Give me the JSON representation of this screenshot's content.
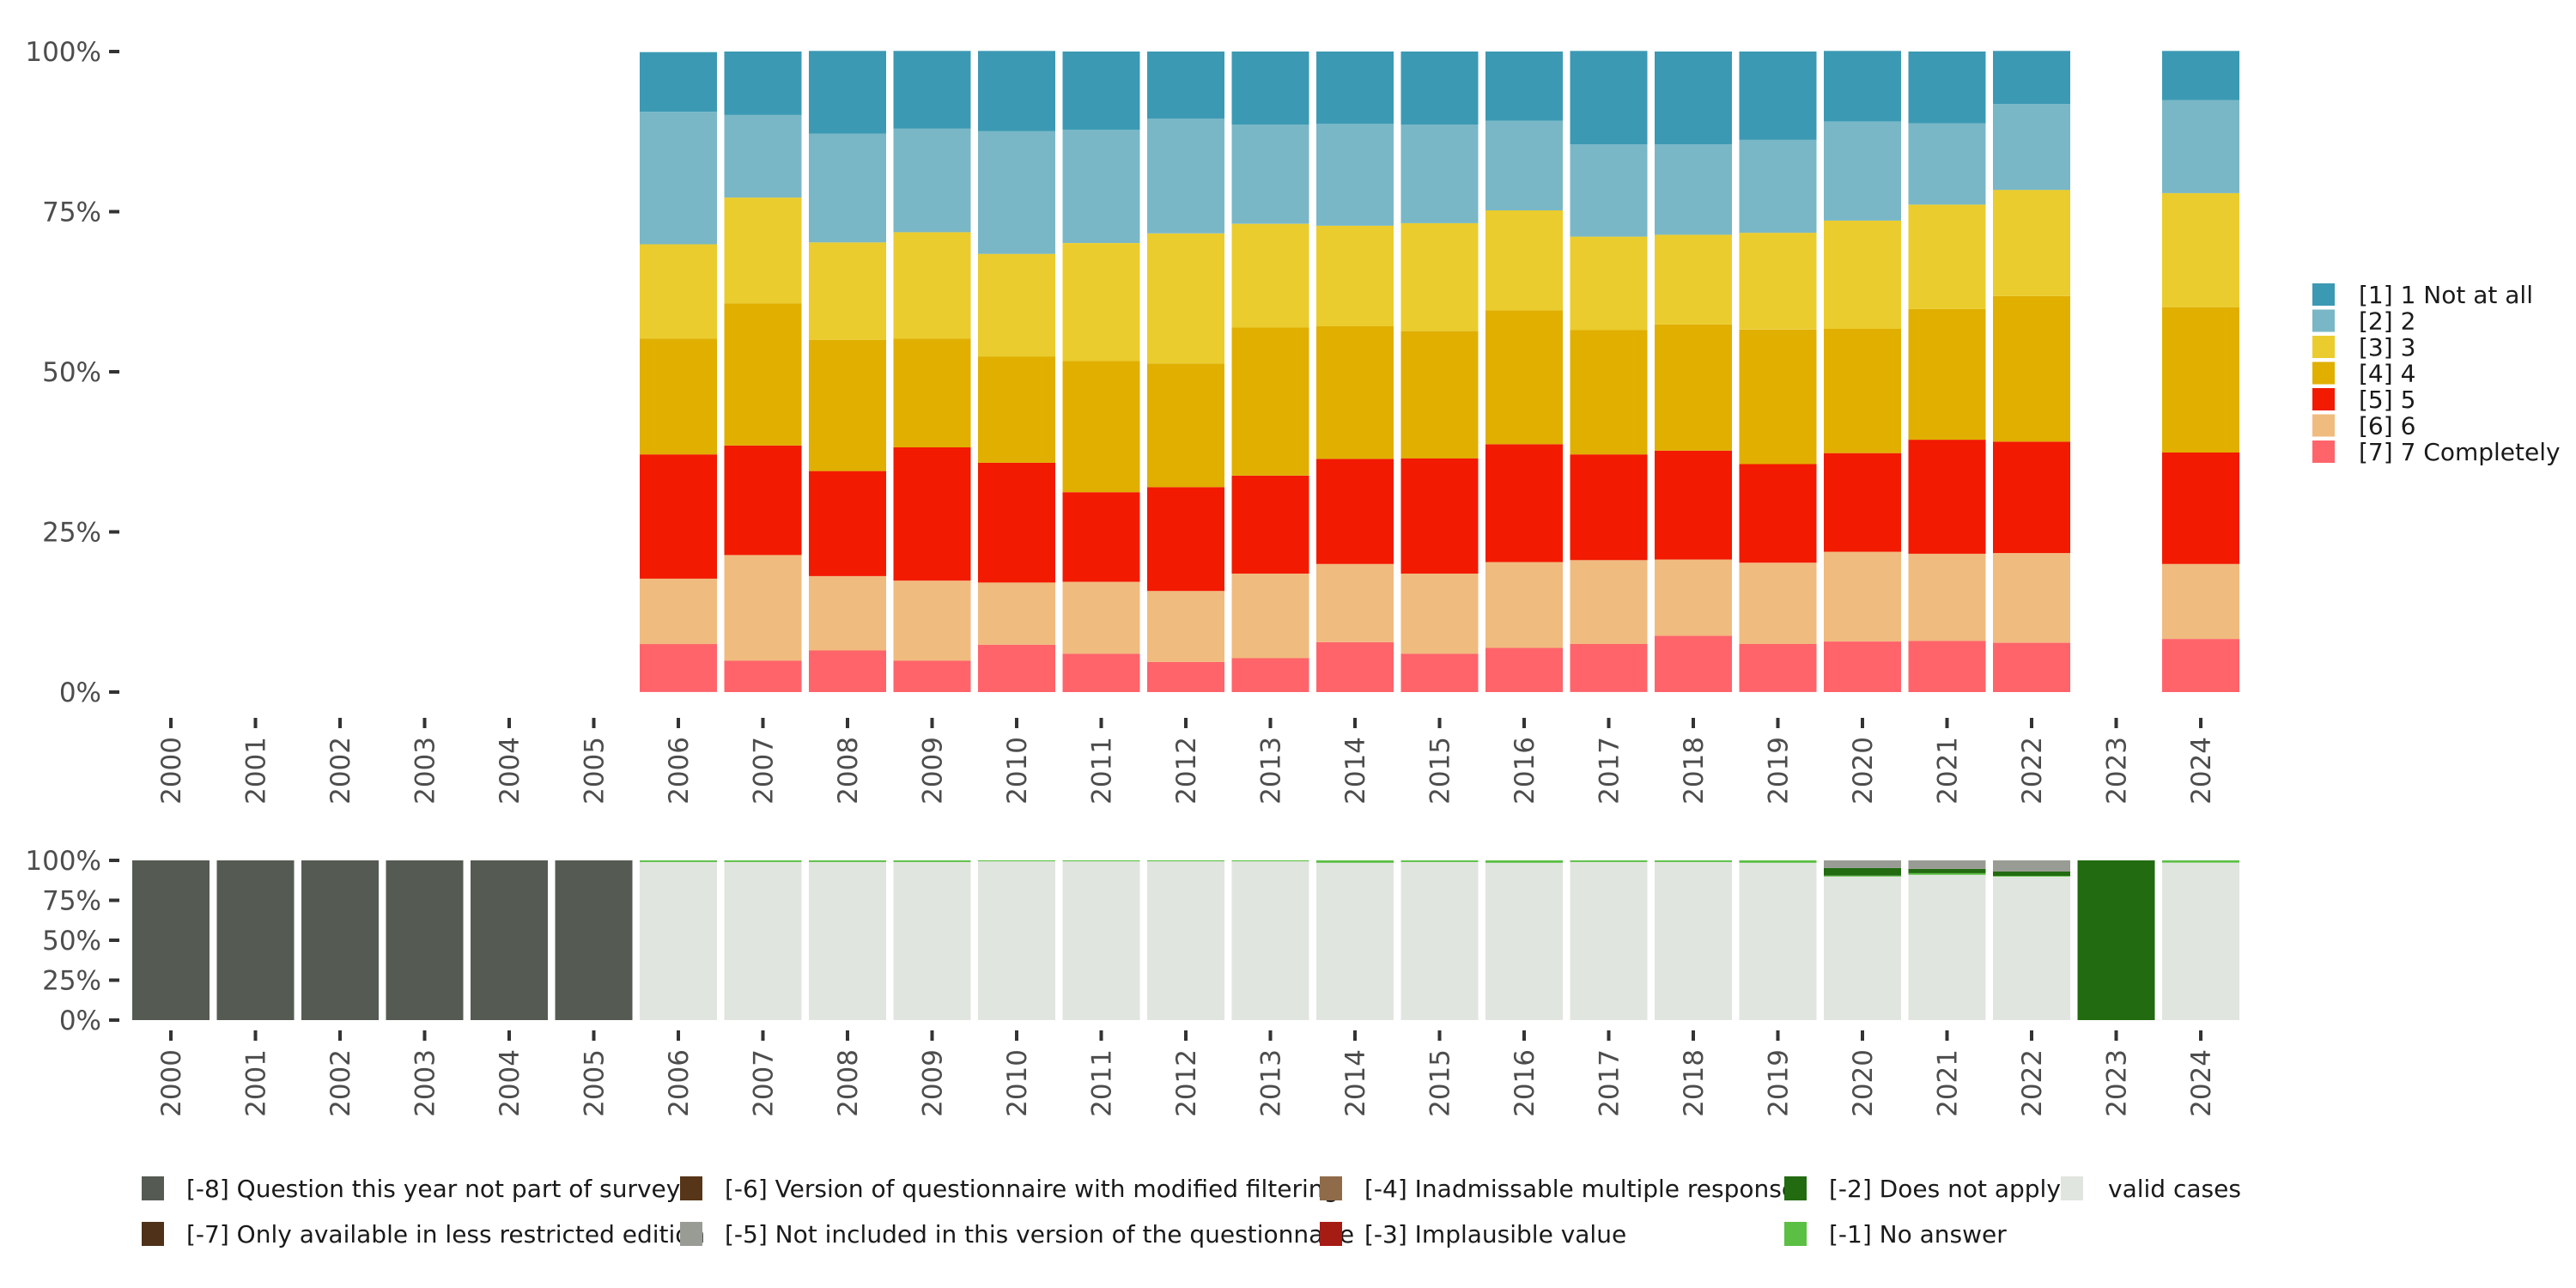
{
  "chart_data": [
    {
      "id": "main",
      "type": "bar",
      "stacked": true,
      "normalized": true,
      "title": "",
      "xlabel": "",
      "ylabel": "",
      "ylim": [
        0,
        100
      ],
      "y_ticks": [
        "0%",
        "25%",
        "50%",
        "75%",
        "100%"
      ],
      "categories": [
        "2000",
        "2001",
        "2002",
        "2003",
        "2004",
        "2005",
        "2006",
        "2007",
        "2008",
        "2009",
        "2010",
        "2011",
        "2012",
        "2013",
        "2014",
        "2015",
        "2016",
        "2017",
        "2018",
        "2019",
        "2020",
        "2021",
        "2022",
        "2023",
        "2024"
      ],
      "legend_position": "right",
      "series": [
        {
          "name": "[1] 1 Not at all",
          "color": "#3c99b3",
          "values": [
            null,
            null,
            null,
            null,
            null,
            null,
            9.3,
            9.9,
            12.9,
            12.1,
            12.5,
            12.2,
            10.5,
            11.4,
            11.3,
            11.4,
            10.8,
            14.6,
            14.5,
            13.8,
            11.0,
            11.2,
            8.3,
            null,
            7.7
          ]
        },
        {
          "name": "[2] 2",
          "color": "#79b7c6",
          "values": [
            null,
            null,
            null,
            null,
            null,
            null,
            20.7,
            12.9,
            17.0,
            16.2,
            19.2,
            17.7,
            17.9,
            15.5,
            15.9,
            15.4,
            14.0,
            14.4,
            14.1,
            14.5,
            15.5,
            12.7,
            13.4,
            null,
            14.5
          ]
        },
        {
          "name": "[3] 3",
          "color": "#eacc2e",
          "values": [
            null,
            null,
            null,
            null,
            null,
            null,
            14.7,
            16.5,
            15.2,
            16.6,
            16.0,
            18.4,
            20.3,
            16.2,
            15.7,
            16.8,
            15.6,
            14.6,
            14.0,
            15.1,
            16.9,
            16.3,
            16.6,
            null,
            17.8
          ]
        },
        {
          "name": "[4] 4",
          "color": "#e0af00",
          "values": [
            null,
            null,
            null,
            null,
            null,
            null,
            18.1,
            22.2,
            20.5,
            17.0,
            16.6,
            20.5,
            19.3,
            23.1,
            20.7,
            19.9,
            20.9,
            19.4,
            19.7,
            21.0,
            19.4,
            20.4,
            22.7,
            null,
            22.7
          ]
        },
        {
          "name": "[5] 5",
          "color": "#f21a00",
          "values": [
            null,
            null,
            null,
            null,
            null,
            null,
            19.4,
            17.1,
            16.4,
            20.8,
            18.7,
            14.0,
            16.2,
            15.3,
            16.4,
            18.0,
            18.4,
            16.5,
            17.0,
            15.4,
            15.4,
            17.8,
            17.4,
            null,
            17.4
          ]
        },
        {
          "name": "[6] 6",
          "color": "#f0bb7f",
          "values": [
            null,
            null,
            null,
            null,
            null,
            null,
            10.2,
            16.5,
            11.6,
            12.5,
            9.7,
            11.2,
            11.1,
            13.2,
            12.2,
            12.5,
            13.4,
            13.1,
            11.9,
            12.7,
            14.0,
            13.6,
            14.0,
            null,
            11.7
          ]
        },
        {
          "name": "[7] 7 Completely",
          "color": "#ff646a",
          "values": [
            null,
            null,
            null,
            null,
            null,
            null,
            7.5,
            4.9,
            6.5,
            4.9,
            7.4,
            6.0,
            4.7,
            5.3,
            7.8,
            6.0,
            6.9,
            7.5,
            8.8,
            7.5,
            7.9,
            8.0,
            7.7,
            null,
            8.3
          ]
        }
      ]
    },
    {
      "id": "missing",
      "type": "bar",
      "stacked": true,
      "normalized": true,
      "title": "",
      "xlabel": "",
      "ylabel": "",
      "ylim": [
        0,
        100
      ],
      "y_ticks": [
        "0%",
        "25%",
        "50%",
        "75%",
        "100%"
      ],
      "categories": [
        "2000",
        "2001",
        "2002",
        "2003",
        "2004",
        "2005",
        "2006",
        "2007",
        "2008",
        "2009",
        "2010",
        "2011",
        "2012",
        "2013",
        "2014",
        "2015",
        "2016",
        "2017",
        "2018",
        "2019",
        "2020",
        "2021",
        "2022",
        "2023",
        "2024"
      ],
      "legend_position": "bottom",
      "series": [
        {
          "name": "[-8] Question this year not part of survey",
          "color": "#555b53",
          "values": [
            100,
            100,
            100,
            100,
            100,
            100,
            0,
            0,
            0,
            0,
            0,
            0,
            0,
            0,
            0,
            0,
            0,
            0,
            0,
            0,
            0,
            0,
            0,
            0,
            0
          ]
        },
        {
          "name": "[-7] Only available in less restricted edition",
          "color": "#4f3119",
          "values": [
            0,
            0,
            0,
            0,
            0,
            0,
            0,
            0,
            0,
            0,
            0,
            0,
            0,
            0,
            0,
            0,
            0,
            0,
            0,
            0,
            0,
            0,
            0,
            0,
            0
          ]
        },
        {
          "name": "[-6] Version of questionnaire with modified filtering",
          "color": "#573518",
          "values": [
            0,
            0,
            0,
            0,
            0,
            0,
            0,
            0,
            0,
            0,
            0,
            0,
            0,
            0,
            0,
            0,
            0,
            0,
            0,
            0,
            0,
            0,
            0,
            0,
            0
          ]
        },
        {
          "name": "[-5] Not included in this version of the questionnaire",
          "color": "#999c94",
          "values": [
            0,
            0,
            0,
            0,
            0,
            0,
            0,
            0,
            0,
            0,
            0,
            0,
            0,
            0,
            0,
            0,
            0,
            0,
            0,
            0,
            4.8,
            5.3,
            7.0,
            0,
            0
          ]
        },
        {
          "name": "[-4] Inadmissable multiple response",
          "color": "#8f6b4a",
          "values": [
            0,
            0,
            0,
            0,
            0,
            0,
            0,
            0,
            0,
            0,
            0,
            0,
            0,
            0,
            0,
            0,
            0,
            0,
            0,
            0,
            0,
            0,
            0,
            0,
            0
          ]
        },
        {
          "name": "[-3] Implausible value",
          "color": "#a51c14",
          "values": [
            0,
            0,
            0,
            0,
            0,
            0,
            0,
            0,
            0,
            0,
            0,
            0,
            0,
            0,
            0,
            0,
            0,
            0,
            0,
            0,
            0,
            0,
            0,
            0,
            0
          ]
        },
        {
          "name": "[-2] Does not apply",
          "color": "#226b11",
          "values": [
            0,
            0,
            0,
            0,
            0,
            0,
            0,
            0,
            0,
            0,
            0,
            0,
            0,
            0,
            0,
            0,
            0,
            0,
            0,
            0,
            4.8,
            2.7,
            2.7,
            100,
            0
          ]
        },
        {
          "name": "[-1] No answer",
          "color": "#5bbf44",
          "values": [
            0,
            0,
            0,
            0,
            0,
            0,
            1.0,
            1.0,
            1.0,
            1.0,
            0.6,
            0.6,
            0.6,
            0.6,
            1.5,
            1.0,
            1.5,
            1.0,
            1.0,
            1.5,
            0.5,
            1.0,
            0.5,
            0,
            1.4
          ]
        },
        {
          "name": "valid cases",
          "color": "#e1e5df",
          "values": [
            0,
            0,
            0,
            0,
            0,
            0,
            99.0,
            99.0,
            99.0,
            99.0,
            99.4,
            99.4,
            99.4,
            99.4,
            98.5,
            99.0,
            98.5,
            99.0,
            99.0,
            98.5,
            89.9,
            91.0,
            89.8,
            0,
            98.6
          ]
        }
      ],
      "legend_layout": [
        [
          "[-8] Question this year not part of survey",
          "[-6] Version of questionnaire with modified filtering",
          "[-4] Inadmissable multiple response",
          "[-2] Does not apply",
          "valid cases"
        ],
        [
          "[-7] Only available in less restricted edition",
          "[-5] Not included in this version of the questionnaire",
          "[-3] Implausible value",
          "[-1] No answer"
        ]
      ]
    }
  ]
}
